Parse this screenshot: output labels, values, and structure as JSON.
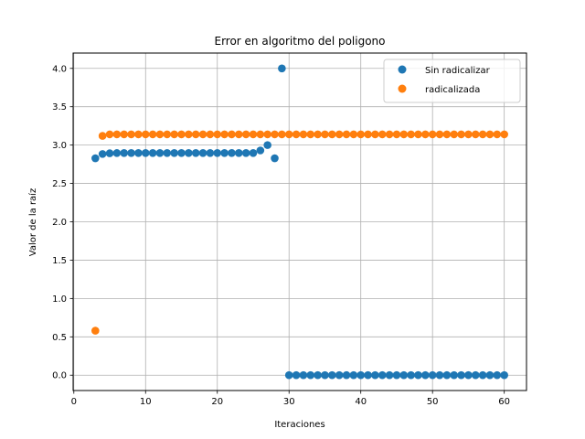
{
  "chart_data": {
    "type": "scatter",
    "title": "Error en algoritmo del poligono",
    "xlabel": "Iteraciones",
    "ylabel": "Valor de la raíz",
    "xlim": [
      -0.1,
      63.1
    ],
    "ylim": [
      -0.2,
      4.2
    ],
    "xticks": [
      0,
      10,
      20,
      30,
      40,
      50,
      60
    ],
    "yticks": [
      0.0,
      0.5,
      1.0,
      1.5,
      2.0,
      2.5,
      3.0,
      3.5,
      4.0
    ],
    "xtick_labels": [
      "0",
      "10",
      "20",
      "30",
      "40",
      "50",
      "60"
    ],
    "ytick_labels": [
      "0.0",
      "0.5",
      "1.0",
      "1.5",
      "2.0",
      "2.5",
      "3.0",
      "3.5",
      "4.0"
    ],
    "grid": true,
    "legend_position": "top-right",
    "series": [
      {
        "name": "Sin radicalizar",
        "color": "#1f77b4",
        "x": [
          3,
          4,
          5,
          6,
          7,
          8,
          9,
          10,
          11,
          12,
          13,
          14,
          15,
          16,
          17,
          18,
          19,
          20,
          21,
          22,
          23,
          24,
          25,
          26,
          27,
          28,
          29,
          30,
          31,
          32,
          33,
          34,
          35,
          36,
          37,
          38,
          39,
          40,
          41,
          42,
          43,
          44,
          45,
          46,
          47,
          48,
          49,
          50,
          51,
          52,
          53,
          54,
          55,
          56,
          57,
          58,
          59,
          60
        ],
        "y": [
          2.828,
          2.884,
          2.893,
          2.896,
          2.897,
          2.897,
          2.897,
          2.897,
          2.897,
          2.897,
          2.897,
          2.897,
          2.897,
          2.897,
          2.897,
          2.897,
          2.897,
          2.897,
          2.897,
          2.897,
          2.897,
          2.897,
          2.897,
          2.93,
          3.0,
          2.828,
          4.0,
          0,
          0,
          0,
          0,
          0,
          0,
          0,
          0,
          0,
          0,
          0,
          0,
          0,
          0,
          0,
          0,
          0,
          0,
          0,
          0,
          0,
          0,
          0,
          0,
          0,
          0,
          0,
          0,
          0,
          0,
          0
        ]
      },
      {
        "name": "radicalizada",
        "color": "#ff7f0e",
        "x": [
          3,
          4,
          5,
          6,
          7,
          8,
          9,
          10,
          11,
          12,
          13,
          14,
          15,
          16,
          17,
          18,
          19,
          20,
          21,
          22,
          23,
          24,
          25,
          26,
          27,
          28,
          29,
          30,
          31,
          32,
          33,
          34,
          35,
          36,
          37,
          38,
          39,
          40,
          41,
          42,
          43,
          44,
          45,
          46,
          47,
          48,
          49,
          50,
          51,
          52,
          53,
          54,
          55,
          56,
          57,
          58,
          59,
          60
        ],
        "y": [
          0.58,
          3.12,
          3.14,
          3.14,
          3.14,
          3.14,
          3.14,
          3.14,
          3.14,
          3.14,
          3.14,
          3.14,
          3.14,
          3.14,
          3.14,
          3.14,
          3.14,
          3.14,
          3.14,
          3.14,
          3.14,
          3.14,
          3.14,
          3.14,
          3.14,
          3.14,
          3.14,
          3.14,
          3.14,
          3.14,
          3.14,
          3.14,
          3.14,
          3.14,
          3.14,
          3.14,
          3.14,
          3.14,
          3.14,
          3.14,
          3.14,
          3.14,
          3.14,
          3.14,
          3.14,
          3.14,
          3.14,
          3.14,
          3.14,
          3.14,
          3.14,
          3.14,
          3.14,
          3.14,
          3.14,
          3.14,
          3.14,
          3.14
        ]
      }
    ]
  }
}
